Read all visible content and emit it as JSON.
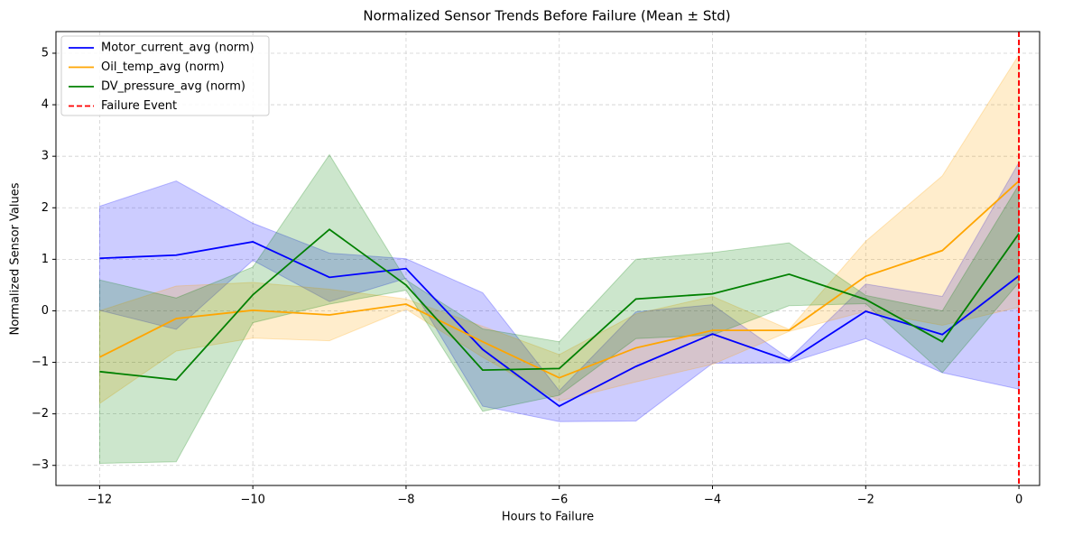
{
  "chart_data": {
    "type": "line",
    "title": "Normalized Sensor Trends Before Failure (Mean ± Std)",
    "x_label": "Hours to Failure",
    "y_label": "Normalized Sensor Values",
    "x": [
      -12,
      -11,
      -10,
      -9,
      -8,
      -7,
      -6,
      -5,
      -4,
      -3,
      -2,
      -1,
      0
    ],
    "series": [
      {
        "name": "Motor_current_avg (norm)",
        "color": "blue",
        "values": [
          1.02,
          1.08,
          1.34,
          0.65,
          0.82,
          -0.75,
          -1.85,
          -1.08,
          -0.45,
          -0.97,
          -0.01,
          -0.46,
          0.68
        ],
        "std": [
          1.01,
          1.44,
          0.36,
          0.47,
          0.19,
          1.1,
          0.3,
          1.06,
          0.57,
          0.04,
          0.53,
          0.74,
          2.2
        ]
      },
      {
        "name": "Oil_temp_avg (norm)",
        "color": "orange",
        "values": [
          -0.9,
          -0.15,
          0.01,
          -0.08,
          0.13,
          -0.6,
          -1.3,
          -0.72,
          -0.38,
          -0.38,
          0.67,
          1.17,
          2.52
        ],
        "std": [
          0.9,
          0.63,
          0.54,
          0.5,
          0.1,
          0.3,
          0.45,
          0.66,
          0.66,
          0.02,
          0.68,
          1.45,
          2.45
        ]
      },
      {
        "name": "DV_pressure_avg (norm)",
        "color": "green",
        "values": [
          -1.18,
          -1.34,
          0.31,
          1.58,
          0.5,
          -1.15,
          -1.12,
          0.23,
          0.33,
          0.71,
          0.22,
          -0.6,
          1.5
        ],
        "std": [
          1.78,
          1.59,
          0.54,
          1.45,
          0.1,
          0.8,
          0.52,
          0.77,
          0.8,
          0.61,
          0.08,
          0.6,
          0.95
        ]
      }
    ],
    "vline": {
      "x": 0,
      "name": "Failure Event",
      "color": "red"
    },
    "xlim": [
      -12.57,
      0.27
    ],
    "ylim": [
      -3.39,
      5.42
    ],
    "xticks": [
      {
        "value": -12,
        "label": "−12"
      },
      {
        "value": -10,
        "label": "−10"
      },
      {
        "value": -8,
        "label": "−8"
      },
      {
        "value": -6,
        "label": "−6"
      },
      {
        "value": -4,
        "label": "−4"
      },
      {
        "value": -2,
        "label": "−2"
      },
      0
    ],
    "yticks": [
      {
        "value": -3,
        "label": "−3"
      },
      {
        "value": -2,
        "label": "−2"
      },
      {
        "value": -1,
        "label": "−1"
      },
      0,
      1,
      2,
      3,
      4,
      5
    ],
    "grid": true,
    "legend": "upper left"
  }
}
